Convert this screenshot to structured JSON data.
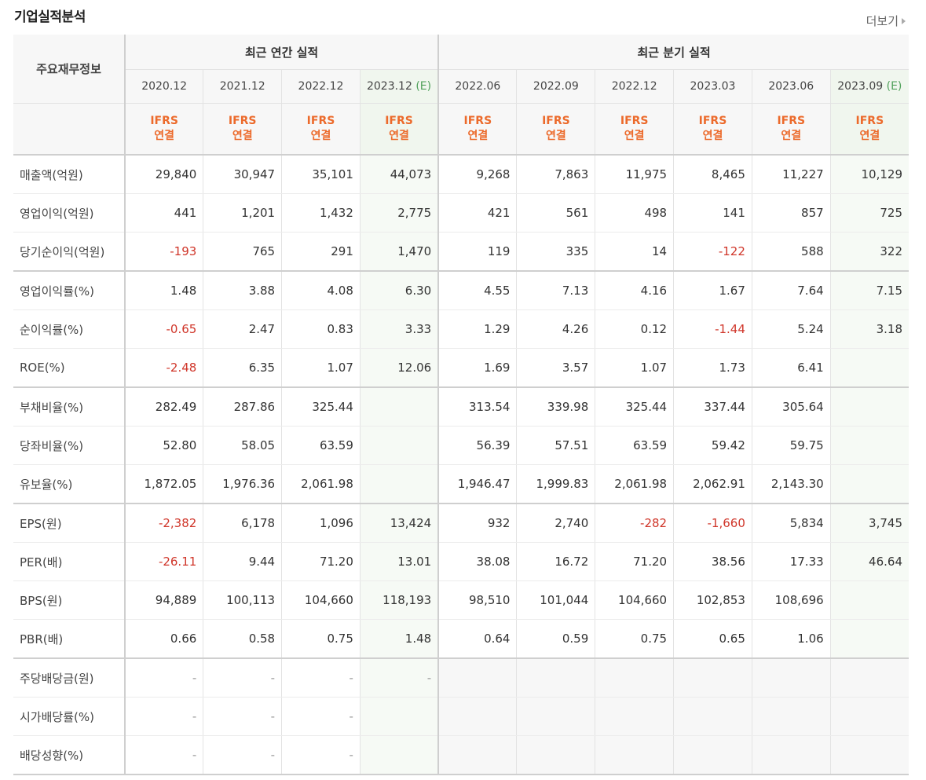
{
  "page_title": "기업실적분석",
  "more_link": "더보기",
  "header": {
    "row_label": "주요재무정보",
    "group_annual": "최근 연간 실적",
    "group_quarter": "최근 분기 실적",
    "periods": [
      {
        "label": "2020.12",
        "est": ""
      },
      {
        "label": "2021.12",
        "est": ""
      },
      {
        "label": "2022.12",
        "est": ""
      },
      {
        "label": "2023.12",
        "est": "(E)"
      },
      {
        "label": "2022.06",
        "est": ""
      },
      {
        "label": "2022.09",
        "est": ""
      },
      {
        "label": "2022.12",
        "est": ""
      },
      {
        "label": "2023.03",
        "est": ""
      },
      {
        "label": "2023.06",
        "est": ""
      },
      {
        "label": "2023.09",
        "est": "(E)"
      }
    ],
    "basis": "IFRS\n연결"
  },
  "rows": [
    {
      "label": "매출액(억원)",
      "values": [
        "29,840",
        "30,947",
        "35,101",
        "44,073",
        "9,268",
        "7,863",
        "11,975",
        "8,465",
        "11,227",
        "10,129"
      ]
    },
    {
      "label": "영업이익(억원)",
      "values": [
        "441",
        "1,201",
        "1,432",
        "2,775",
        "421",
        "561",
        "498",
        "141",
        "857",
        "725"
      ]
    },
    {
      "label": "당기순이익(억원)",
      "values": [
        "-193",
        "765",
        "291",
        "1,470",
        "119",
        "335",
        "14",
        "-122",
        "588",
        "322"
      ]
    },
    {
      "label": "영업이익률(%)",
      "values": [
        "1.48",
        "3.88",
        "4.08",
        "6.30",
        "4.55",
        "7.13",
        "4.16",
        "1.67",
        "7.64",
        "7.15"
      ]
    },
    {
      "label": "순이익률(%)",
      "values": [
        "-0.65",
        "2.47",
        "0.83",
        "3.33",
        "1.29",
        "4.26",
        "0.12",
        "-1.44",
        "5.24",
        "3.18"
      ]
    },
    {
      "label": "ROE(%)",
      "values": [
        "-2.48",
        "6.35",
        "1.07",
        "12.06",
        "1.69",
        "3.57",
        "1.07",
        "1.73",
        "6.41",
        ""
      ]
    },
    {
      "label": "부채비율(%)",
      "values": [
        "282.49",
        "287.86",
        "325.44",
        "",
        "313.54",
        "339.98",
        "325.44",
        "337.44",
        "305.64",
        ""
      ]
    },
    {
      "label": "당좌비율(%)",
      "values": [
        "52.80",
        "58.05",
        "63.59",
        "",
        "56.39",
        "57.51",
        "63.59",
        "59.42",
        "59.75",
        ""
      ]
    },
    {
      "label": "유보율(%)",
      "values": [
        "1,872.05",
        "1,976.36",
        "2,061.98",
        "",
        "1,946.47",
        "1,999.83",
        "2,061.98",
        "2,062.91",
        "2,143.30",
        ""
      ]
    },
    {
      "label": "EPS(원)",
      "values": [
        "-2,382",
        "6,178",
        "1,096",
        "13,424",
        "932",
        "2,740",
        "-282",
        "-1,660",
        "5,834",
        "3,745"
      ]
    },
    {
      "label": "PER(배)",
      "values": [
        "-26.11",
        "9.44",
        "71.20",
        "13.01",
        "38.08",
        "16.72",
        "71.20",
        "38.56",
        "17.33",
        "46.64"
      ]
    },
    {
      "label": "BPS(원)",
      "values": [
        "94,889",
        "100,113",
        "104,660",
        "118,193",
        "98,510",
        "101,044",
        "104,660",
        "102,853",
        "108,696",
        ""
      ]
    },
    {
      "label": "PBR(배)",
      "values": [
        "0.66",
        "0.58",
        "0.75",
        "1.48",
        "0.64",
        "0.59",
        "0.75",
        "0.65",
        "1.06",
        ""
      ]
    },
    {
      "label": "주당배당금(원)",
      "values": [
        "-",
        "-",
        "-",
        "-",
        "",
        "",
        "",
        "",
        "",
        ""
      ]
    },
    {
      "label": "시가배당률(%)",
      "values": [
        "-",
        "-",
        "-",
        "",
        "",
        "",
        "",
        "",
        "",
        ""
      ]
    },
    {
      "label": "배당성향(%)",
      "values": [
        "-",
        "-",
        "-",
        "",
        "",
        "",
        "",
        "",
        "",
        ""
      ]
    }
  ],
  "colors": {
    "negative": "#d0362a",
    "basis": "#ec6a2b",
    "estimate": "#4fa05a",
    "estimate_col_bg": "#f6faf5"
  }
}
